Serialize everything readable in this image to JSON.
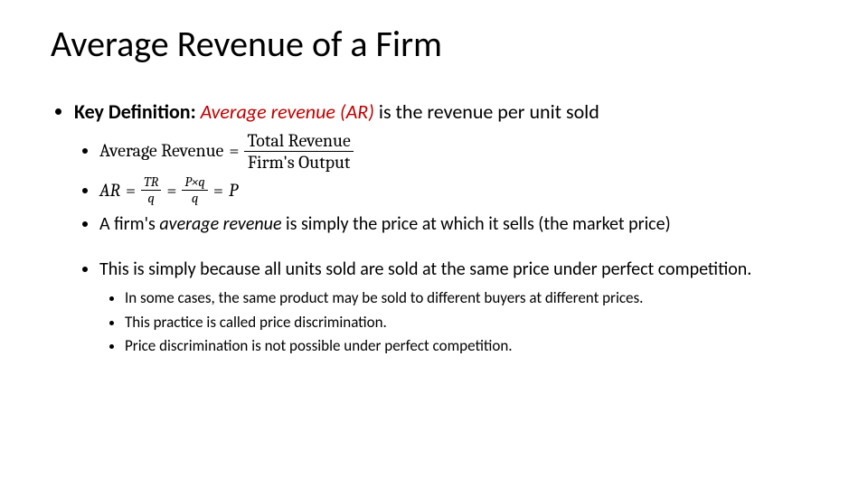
{
  "title": "Average Revenue of a Firm",
  "colors": {
    "term": "#c00000",
    "text": "#000000",
    "background": "#ffffff"
  },
  "bullets": {
    "keydef_label": "Key Definition:",
    "keydef_term": "Average revenue (AR)",
    "keydef_rest": " is the revenue per unit sold",
    "ar_word_lhs": "Average Revenue",
    "eq": "=",
    "frac1_num": "Total Revenue",
    "frac1_den": "Firm's Output",
    "ar_sym_lhs": "AR",
    "frac2_num": "TR",
    "frac2_den": "q",
    "frac3_num": "P×q",
    "frac3_den": "q",
    "ar_sym_rhs": "P",
    "price_line_a": "A firm's ",
    "price_line_term": "average revenue",
    "price_line_b": " is simply the price at which it sells (the market price)",
    "reason": "This is simply because all units sold are sold at the same price under perfect competition.",
    "sub1": "In some cases, the same product may be sold to different buyers at different prices.",
    "sub2": "This practice is called price discrimination.",
    "sub3": "Price discrimination is not possible under perfect competition."
  }
}
